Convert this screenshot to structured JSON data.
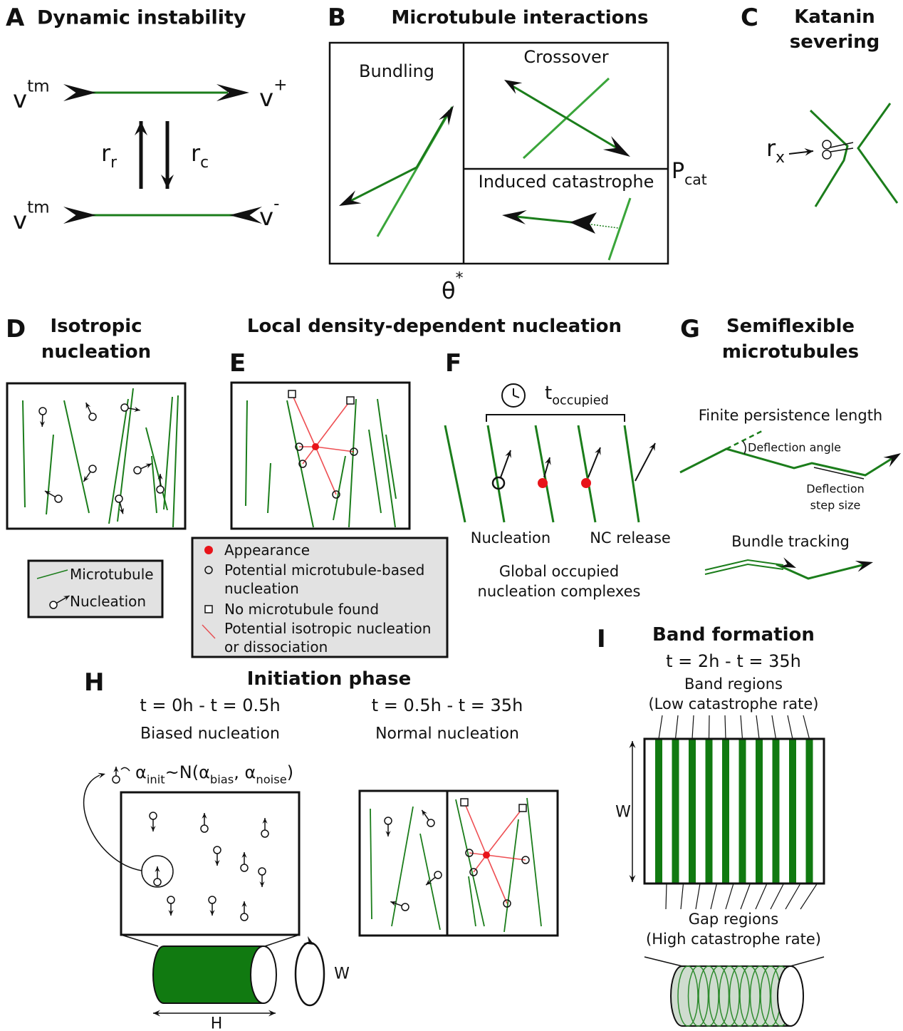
{
  "panel_a": {
    "label": "A",
    "title": "Dynamic instability",
    "v_tm_top": {
      "base": "v",
      "sup": "tm"
    },
    "v_plus": {
      "base": "v",
      "sup": "+"
    },
    "r_r": {
      "base": "r",
      "sub": "r"
    },
    "r_c": {
      "base": "r",
      "sub": "c"
    },
    "v_tm_bottom": {
      "base": "v",
      "sup": "tm"
    },
    "v_minus": {
      "base": "v",
      "sup": "-"
    }
  },
  "panel_b": {
    "label": "B",
    "title": "Microtubule interactions",
    "bundling": "Bundling",
    "crossover": "Crossover",
    "induced": "Induced catastrophe",
    "p_cat": {
      "base": "P",
      "sub": "cat"
    },
    "theta": {
      "base": "θ",
      "sup": "*"
    }
  },
  "panel_c": {
    "label": "C",
    "title": [
      "Katanin",
      "severing"
    ],
    "r_x": {
      "base": "r",
      "sub": "x"
    }
  },
  "panel_d": {
    "label": "D",
    "title": [
      "Isotropic",
      "nucleation"
    ],
    "legend": [
      "Microtubule",
      "Nucleation"
    ]
  },
  "shared_title": "Local density-dependent nucleation",
  "panel_e": {
    "label": "E",
    "legend": [
      [
        "Appearance"
      ],
      [
        "Potential microtubule-based",
        "nucleation"
      ],
      [
        "No microtubule found"
      ],
      [
        "Potential isotropic nucleation",
        "or dissociation"
      ]
    ]
  },
  "panel_f": {
    "label": "F",
    "t_occupied": {
      "base": "t",
      "sub": "occupied"
    },
    "nucleation": "Nucleation",
    "nc_release": "NC release",
    "caption": [
      "Global occupied",
      "nucleation complexes"
    ]
  },
  "panel_g": {
    "label": "G",
    "title": [
      "Semiflexible",
      "microtubules"
    ],
    "finite": "Finite persistence length",
    "deflection_angle": "Deflection angle",
    "step": [
      "Deflection",
      "step size"
    ],
    "bundle": "Bundle tracking"
  },
  "panel_h": {
    "label": "H",
    "title": "Initiation phase",
    "left_time": "t = 0h - t = 0.5h",
    "left_mode": "Biased nucleation",
    "right_time": "t = 0.5h - t = 35h",
    "right_mode": "Normal nucleation",
    "formula": [
      {
        "base": "α",
        "sub": "init"
      },
      {
        "base": "~N(α",
        "sub": "bias"
      },
      {
        "base": ", α",
        "sub": "noise"
      },
      {
        "base": ")"
      }
    ],
    "w": "W",
    "h": "H"
  },
  "panel_i": {
    "label": "I",
    "title": "Band formation",
    "time": "t = 2h - t = 35h",
    "band": [
      "Band regions",
      "(Low catastrophe rate)"
    ],
    "gap": [
      "Gap regions",
      "(High catastrophe rate)"
    ],
    "w": "W"
  }
}
